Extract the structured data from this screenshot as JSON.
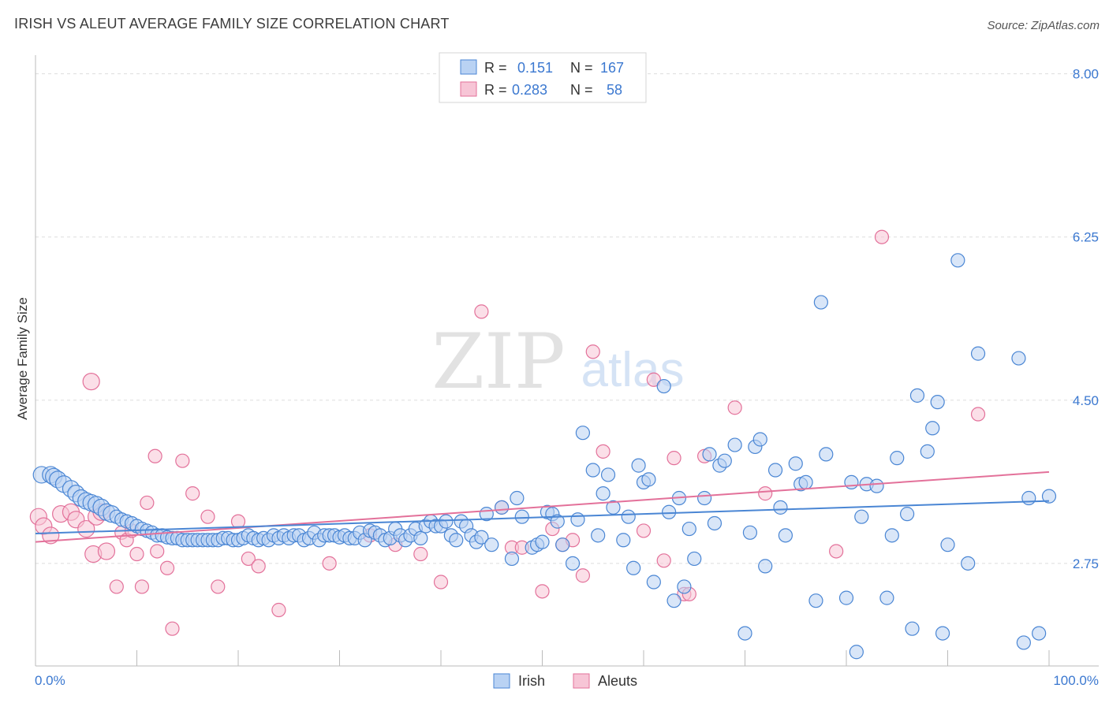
{
  "title": "IRISH VS ALEUT AVERAGE FAMILY SIZE CORRELATION CHART",
  "source": "Source: ZipAtlas.com",
  "watermark": {
    "zip": "ZIP",
    "atlas": "atlas"
  },
  "colors": {
    "irish": "#4a86d4",
    "irish_fill": "#b9d2f3",
    "aleuts": "#e3719a",
    "aleuts_fill": "#f7c5d6",
    "grid": "#dddddd",
    "tick_label": "#3b78d0",
    "axis": "#999999"
  },
  "legend_top": [
    {
      "r_label": "R =",
      "r_value": "0.151",
      "n_label": "N =",
      "n_value": "167"
    },
    {
      "r_label": "R =",
      "r_value": "0.283",
      "n_label": "N =",
      "n_value": "58"
    }
  ],
  "chart_data": {
    "type": "scatter",
    "title": "IRISH VS ALEUT AVERAGE FAMILY SIZE CORRELATION CHART",
    "xlabel": "",
    "ylabel": "Average Family Size",
    "xlim": [
      0,
      100
    ],
    "ylim": [
      1.65,
      8.2
    ],
    "x_tick_labels": [
      "0.0%",
      "100.0%"
    ],
    "y_ticks": [
      2.75,
      4.5,
      6.25,
      8.0
    ],
    "y_tick_labels": [
      "2.75",
      "4.50",
      "6.25",
      "8.00"
    ],
    "grid": true,
    "legend_position": "bottom",
    "series": [
      {
        "name": "Irish",
        "r": 0.151,
        "n": 167,
        "trend": {
          "x": [
            0,
            100
          ],
          "y": [
            3.07,
            3.42
          ]
        },
        "points": [
          [
            0.6,
            3.7
          ],
          [
            1.5,
            3.7
          ],
          [
            1.8,
            3.68
          ],
          [
            2.2,
            3.65
          ],
          [
            2.8,
            3.6
          ],
          [
            3.5,
            3.55
          ],
          [
            4,
            3.5
          ],
          [
            4.5,
            3.45
          ],
          [
            5,
            3.42
          ],
          [
            5.5,
            3.4
          ],
          [
            6,
            3.38
          ],
          [
            6.5,
            3.35
          ],
          [
            7,
            3.3
          ],
          [
            7.5,
            3.28
          ],
          [
            8,
            3.25
          ],
          [
            8.5,
            3.22
          ],
          [
            9,
            3.2
          ],
          [
            9.5,
            3.18
          ],
          [
            10,
            3.15
          ],
          [
            10.5,
            3.12
          ],
          [
            11,
            3.1
          ],
          [
            11.5,
            3.08
          ],
          [
            12,
            3.05
          ],
          [
            12.5,
            3.05
          ],
          [
            13,
            3.03
          ],
          [
            13.5,
            3.02
          ],
          [
            14,
            3.02
          ],
          [
            14.5,
            3.0
          ],
          [
            15,
            3.0
          ],
          [
            15.5,
            3.0
          ],
          [
            16,
            3.0
          ],
          [
            16.5,
            3.0
          ],
          [
            17,
            3.0
          ],
          [
            17.5,
            3.0
          ],
          [
            18,
            3.0
          ],
          [
            18.5,
            3.02
          ],
          [
            19,
            3.02
          ],
          [
            19.5,
            3.0
          ],
          [
            20,
            3.0
          ],
          [
            20.5,
            3.02
          ],
          [
            21,
            3.05
          ],
          [
            21.5,
            3.02
          ],
          [
            22,
            3.0
          ],
          [
            22.5,
            3.02
          ],
          [
            23,
            3.0
          ],
          [
            23.5,
            3.05
          ],
          [
            24,
            3.02
          ],
          [
            24.5,
            3.05
          ],
          [
            25,
            3.02
          ],
          [
            25.5,
            3.05
          ],
          [
            26,
            3.05
          ],
          [
            26.5,
            3.0
          ],
          [
            27,
            3.02
          ],
          [
            27.5,
            3.08
          ],
          [
            28,
            3.0
          ],
          [
            28.5,
            3.05
          ],
          [
            29,
            3.05
          ],
          [
            29.5,
            3.05
          ],
          [
            30,
            3.03
          ],
          [
            30.5,
            3.05
          ],
          [
            31,
            3.02
          ],
          [
            31.5,
            3.02
          ],
          [
            32,
            3.08
          ],
          [
            32.5,
            3.0
          ],
          [
            33,
            3.1
          ],
          [
            33.5,
            3.08
          ],
          [
            34,
            3.05
          ],
          [
            34.5,
            3.0
          ],
          [
            35,
            3.02
          ],
          [
            35.5,
            3.12
          ],
          [
            36,
            3.05
          ],
          [
            36.5,
            3.0
          ],
          [
            37,
            3.05
          ],
          [
            37.5,
            3.12
          ],
          [
            38,
            3.02
          ],
          [
            38.5,
            3.15
          ],
          [
            39,
            3.2
          ],
          [
            39.5,
            3.15
          ],
          [
            40,
            3.15
          ],
          [
            40.5,
            3.2
          ],
          [
            41,
            3.05
          ],
          [
            41.5,
            3.0
          ],
          [
            42,
            3.2
          ],
          [
            42.5,
            3.15
          ],
          [
            43,
            3.05
          ],
          [
            43.5,
            2.98
          ],
          [
            44,
            3.03
          ],
          [
            44.5,
            3.28
          ],
          [
            45,
            2.95
          ],
          [
            46,
            3.35
          ],
          [
            47,
            2.8
          ],
          [
            47.5,
            3.45
          ],
          [
            48,
            3.25
          ],
          [
            49,
            2.92
          ],
          [
            49.5,
            2.95
          ],
          [
            50,
            2.98
          ],
          [
            50.5,
            3.3
          ],
          [
            51,
            3.28
          ],
          [
            51.5,
            3.2
          ],
          [
            52,
            2.95
          ],
          [
            53,
            2.75
          ],
          [
            53.5,
            3.22
          ],
          [
            54,
            4.15
          ],
          [
            55,
            3.75
          ],
          [
            55.5,
            3.05
          ],
          [
            56,
            3.5
          ],
          [
            56.5,
            3.7
          ],
          [
            57,
            3.35
          ],
          [
            58,
            3.0
          ],
          [
            58.5,
            3.25
          ],
          [
            59,
            2.7
          ],
          [
            59.5,
            3.8
          ],
          [
            60,
            3.62
          ],
          [
            60.5,
            3.65
          ],
          [
            61,
            2.55
          ],
          [
            62,
            4.65
          ],
          [
            62.5,
            3.3
          ],
          [
            63,
            2.35
          ],
          [
            63.5,
            3.45
          ],
          [
            64,
            2.5
          ],
          [
            64.5,
            3.12
          ],
          [
            65,
            2.8
          ],
          [
            66,
            3.45
          ],
          [
            66.5,
            3.92
          ],
          [
            67,
            3.18
          ],
          [
            67.5,
            3.8
          ],
          [
            68,
            3.85
          ],
          [
            69,
            4.02
          ],
          [
            70,
            2.0
          ],
          [
            70.5,
            3.08
          ],
          [
            71,
            4.0
          ],
          [
            71.5,
            4.08
          ],
          [
            72,
            2.72
          ],
          [
            73,
            3.75
          ],
          [
            73.5,
            3.35
          ],
          [
            74,
            3.05
          ],
          [
            75,
            3.82
          ],
          [
            75.5,
            3.6
          ],
          [
            76,
            3.62
          ],
          [
            77,
            2.35
          ],
          [
            77.5,
            5.55
          ],
          [
            78,
            3.92
          ],
          [
            80,
            2.38
          ],
          [
            80.5,
            3.62
          ],
          [
            81,
            1.8
          ],
          [
            81.5,
            3.25
          ],
          [
            82,
            3.6
          ],
          [
            83,
            3.58
          ],
          [
            84,
            2.38
          ],
          [
            84.5,
            3.05
          ],
          [
            85,
            3.88
          ],
          [
            86,
            3.28
          ],
          [
            86.5,
            2.05
          ],
          [
            87,
            4.55
          ],
          [
            88,
            3.95
          ],
          [
            88.5,
            4.2
          ],
          [
            89,
            4.48
          ],
          [
            89.5,
            2.0
          ],
          [
            90,
            2.95
          ],
          [
            91,
            6.0
          ],
          [
            92,
            2.75
          ],
          [
            93,
            5.0
          ],
          [
            97,
            4.95
          ],
          [
            97.5,
            1.9
          ],
          [
            98,
            3.45
          ],
          [
            99,
            2.0
          ],
          [
            100,
            3.47
          ]
        ]
      },
      {
        "name": "Aleuts",
        "r": 0.283,
        "n": 58,
        "trend": {
          "x": [
            0,
            100
          ],
          "y": [
            2.98,
            3.73
          ]
        },
        "points": [
          [
            0.3,
            3.25
          ],
          [
            0.8,
            3.15
          ],
          [
            1.5,
            3.05
          ],
          [
            2.5,
            3.28
          ],
          [
            3.5,
            3.3
          ],
          [
            4,
            3.22
          ],
          [
            5,
            3.12
          ],
          [
            5.5,
            4.7
          ],
          [
            5.7,
            2.85
          ],
          [
            6,
            3.25
          ],
          [
            6.5,
            3.3
          ],
          [
            7,
            2.88
          ],
          [
            8,
            2.5
          ],
          [
            8.5,
            3.08
          ],
          [
            9,
            3.0
          ],
          [
            9.5,
            3.1
          ],
          [
            10,
            2.85
          ],
          [
            10.5,
            2.5
          ],
          [
            11,
            3.4
          ],
          [
            11.8,
            3.9
          ],
          [
            12,
            2.88
          ],
          [
            13,
            2.7
          ],
          [
            13.5,
            2.05
          ],
          [
            14.5,
            3.85
          ],
          [
            15.5,
            3.5
          ],
          [
            17,
            3.25
          ],
          [
            18,
            2.5
          ],
          [
            20,
            3.2
          ],
          [
            21,
            2.8
          ],
          [
            22,
            2.72
          ],
          [
            24,
            2.25
          ],
          [
            29,
            2.75
          ],
          [
            33,
            3.05
          ],
          [
            35.5,
            2.95
          ],
          [
            38,
            2.85
          ],
          [
            40,
            2.55
          ],
          [
            44,
            5.45
          ],
          [
            46,
            3.35
          ],
          [
            47,
            2.92
          ],
          [
            48,
            2.92
          ],
          [
            50,
            2.45
          ],
          [
            51,
            3.12
          ],
          [
            52,
            2.95
          ],
          [
            53,
            3.0
          ],
          [
            54,
            2.62
          ],
          [
            55,
            5.02
          ],
          [
            56,
            3.95
          ],
          [
            60,
            3.1
          ],
          [
            61,
            4.72
          ],
          [
            62,
            2.78
          ],
          [
            63,
            3.88
          ],
          [
            64,
            2.42
          ],
          [
            64.5,
            2.42
          ],
          [
            66,
            3.9
          ],
          [
            69,
            4.42
          ],
          [
            72,
            3.5
          ],
          [
            79,
            2.88
          ],
          [
            83.5,
            6.25
          ],
          [
            93,
            4.35
          ]
        ]
      }
    ]
  },
  "legend_bottom": [
    {
      "label": "Irish"
    },
    {
      "label": "Aleuts"
    }
  ]
}
